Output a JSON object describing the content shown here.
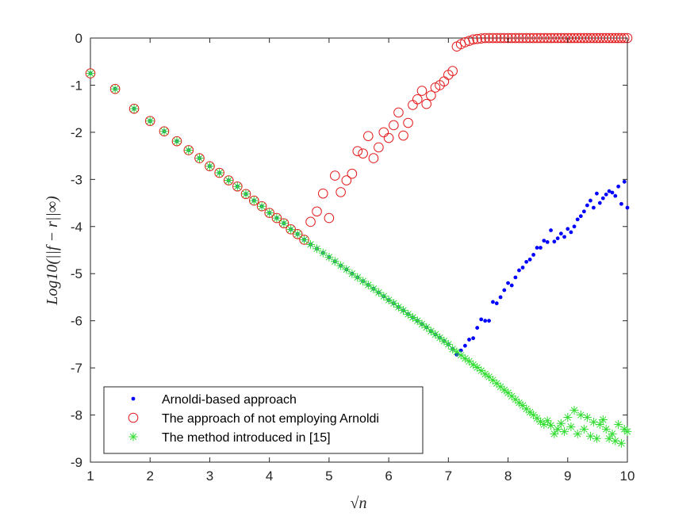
{
  "chart_data": {
    "type": "scatter",
    "title": "",
    "xlabel": "√n",
    "ylabel": "Log10(||f − r||∞)",
    "xlim": [
      1,
      10
    ],
    "ylim": [
      -9,
      0
    ],
    "xticks": [
      1,
      2,
      3,
      4,
      5,
      6,
      7,
      8,
      9,
      10
    ],
    "yticks": [
      0,
      -1,
      -2,
      -3,
      -4,
      -5,
      -6,
      -7,
      -8,
      -9
    ],
    "grid": false,
    "legend_position": "bottom-left",
    "series": [
      {
        "name": "Arnoldi-based approach",
        "marker": "dot",
        "color": "#0000ff",
        "points": [
          [
            1.0,
            -0.75
          ],
          [
            1.414,
            -1.08
          ],
          [
            1.732,
            -1.5
          ],
          [
            2.0,
            -1.76
          ],
          [
            2.236,
            -1.98
          ],
          [
            2.449,
            -2.19
          ],
          [
            2.646,
            -2.38
          ],
          [
            2.828,
            -2.55
          ],
          [
            3.0,
            -2.72
          ],
          [
            3.162,
            -2.86
          ],
          [
            3.317,
            -3.02
          ],
          [
            3.464,
            -3.15
          ],
          [
            3.606,
            -3.31
          ],
          [
            3.742,
            -3.45
          ],
          [
            3.873,
            -3.57
          ],
          [
            4.0,
            -3.71
          ],
          [
            4.123,
            -3.82
          ],
          [
            4.243,
            -3.93
          ],
          [
            4.359,
            -4.06
          ],
          [
            4.472,
            -4.16
          ],
          [
            4.583,
            -4.28
          ],
          [
            4.69,
            -4.38
          ],
          [
            4.796,
            -4.47
          ],
          [
            4.899,
            -4.56
          ],
          [
            5.0,
            -4.65
          ],
          [
            5.099,
            -4.74
          ],
          [
            5.196,
            -4.83
          ],
          [
            5.292,
            -4.91
          ],
          [
            5.385,
            -5.0
          ],
          [
            5.477,
            -5.08
          ],
          [
            5.568,
            -5.16
          ],
          [
            5.657,
            -5.24
          ],
          [
            5.745,
            -5.32
          ],
          [
            5.831,
            -5.4
          ],
          [
            5.916,
            -5.48
          ],
          [
            6.0,
            -5.56
          ],
          [
            6.083,
            -5.63
          ],
          [
            6.164,
            -5.71
          ],
          [
            6.245,
            -5.78
          ],
          [
            6.325,
            -5.86
          ],
          [
            6.403,
            -5.93
          ],
          [
            6.481,
            -6.0
          ],
          [
            6.557,
            -6.07
          ],
          [
            6.633,
            -6.14
          ],
          [
            6.708,
            -6.22
          ],
          [
            6.782,
            -6.29
          ],
          [
            6.856,
            -6.36
          ],
          [
            6.928,
            -6.43
          ],
          [
            7.0,
            -6.5
          ],
          [
            7.071,
            -6.6
          ],
          [
            7.141,
            -6.72
          ],
          [
            7.211,
            -6.63
          ],
          [
            7.28,
            -6.53
          ],
          [
            7.348,
            -6.4
          ],
          [
            7.416,
            -6.37
          ],
          [
            7.483,
            -6.15
          ],
          [
            7.55,
            -5.97
          ],
          [
            7.616,
            -6.0
          ],
          [
            7.681,
            -6.0
          ],
          [
            7.746,
            -5.6
          ],
          [
            7.81,
            -5.63
          ],
          [
            7.874,
            -5.5
          ],
          [
            7.937,
            -5.35
          ],
          [
            8.0,
            -5.2
          ],
          [
            8.062,
            -5.25
          ],
          [
            8.124,
            -5.08
          ],
          [
            8.185,
            -4.93
          ],
          [
            8.246,
            -4.87
          ],
          [
            8.307,
            -4.75
          ],
          [
            8.367,
            -4.7
          ],
          [
            8.426,
            -4.6
          ],
          [
            8.485,
            -4.45
          ],
          [
            8.544,
            -4.45
          ],
          [
            8.602,
            -4.3
          ],
          [
            8.66,
            -4.33
          ],
          [
            8.718,
            -4.08
          ],
          [
            8.775,
            -4.32
          ],
          [
            8.832,
            -4.25
          ],
          [
            8.888,
            -4.15
          ],
          [
            8.944,
            -4.22
          ],
          [
            9.0,
            -4.05
          ],
          [
            9.055,
            -4.12
          ],
          [
            9.11,
            -4.0
          ],
          [
            9.165,
            -3.85
          ],
          [
            9.22,
            -3.78
          ],
          [
            9.274,
            -3.68
          ],
          [
            9.327,
            -3.55
          ],
          [
            9.381,
            -3.45
          ],
          [
            9.434,
            -3.6
          ],
          [
            9.487,
            -3.3
          ],
          [
            9.539,
            -3.5
          ],
          [
            9.592,
            -3.4
          ],
          [
            9.644,
            -3.32
          ],
          [
            9.695,
            -3.25
          ],
          [
            9.747,
            -3.28
          ],
          [
            9.798,
            -3.35
          ],
          [
            9.849,
            -3.15
          ],
          [
            9.899,
            -3.52
          ],
          [
            9.95,
            -3.05
          ],
          [
            10.0,
            -3.6
          ]
        ]
      },
      {
        "name": "The approach of not employing Arnoldi",
        "marker": "circle",
        "color": "#e31a1c",
        "points": [
          [
            1.0,
            -0.75
          ],
          [
            1.414,
            -1.08
          ],
          [
            1.732,
            -1.5
          ],
          [
            2.0,
            -1.76
          ],
          [
            2.236,
            -1.98
          ],
          [
            2.449,
            -2.19
          ],
          [
            2.646,
            -2.38
          ],
          [
            2.828,
            -2.55
          ],
          [
            3.0,
            -2.72
          ],
          [
            3.162,
            -2.86
          ],
          [
            3.317,
            -3.02
          ],
          [
            3.464,
            -3.15
          ],
          [
            3.606,
            -3.31
          ],
          [
            3.742,
            -3.45
          ],
          [
            3.873,
            -3.57
          ],
          [
            4.0,
            -3.71
          ],
          [
            4.123,
            -3.82
          ],
          [
            4.243,
            -3.93
          ],
          [
            4.359,
            -4.06
          ],
          [
            4.472,
            -4.16
          ],
          [
            4.583,
            -4.28
          ],
          [
            4.69,
            -3.9
          ],
          [
            4.796,
            -3.68
          ],
          [
            4.899,
            -3.3
          ],
          [
            5.0,
            -3.82
          ],
          [
            5.099,
            -2.92
          ],
          [
            5.196,
            -3.27
          ],
          [
            5.292,
            -3.02
          ],
          [
            5.385,
            -2.88
          ],
          [
            5.477,
            -2.4
          ],
          [
            5.568,
            -2.45
          ],
          [
            5.657,
            -2.08
          ],
          [
            5.745,
            -2.55
          ],
          [
            5.831,
            -2.32
          ],
          [
            5.916,
            -2.0
          ],
          [
            6.0,
            -2.12
          ],
          [
            6.083,
            -1.85
          ],
          [
            6.164,
            -1.58
          ],
          [
            6.245,
            -2.07
          ],
          [
            6.325,
            -1.8
          ],
          [
            6.403,
            -1.42
          ],
          [
            6.481,
            -1.3
          ],
          [
            6.557,
            -1.12
          ],
          [
            6.633,
            -1.4
          ],
          [
            6.708,
            -1.22
          ],
          [
            6.782,
            -1.05
          ],
          [
            6.856,
            -1.0
          ],
          [
            6.928,
            -0.92
          ],
          [
            7.0,
            -0.78
          ],
          [
            7.071,
            -0.7
          ],
          [
            7.141,
            -0.18
          ],
          [
            7.211,
            -0.13
          ],
          [
            7.28,
            -0.09
          ],
          [
            7.348,
            -0.06
          ],
          [
            7.416,
            -0.03
          ],
          [
            7.483,
            -0.02
          ],
          [
            7.55,
            -0.01
          ],
          [
            7.616,
            0
          ],
          [
            7.681,
            0
          ],
          [
            7.746,
            0
          ],
          [
            7.81,
            0
          ],
          [
            7.874,
            0
          ],
          [
            7.937,
            0
          ],
          [
            8.0,
            0
          ],
          [
            8.062,
            0
          ],
          [
            8.124,
            0
          ],
          [
            8.185,
            0
          ],
          [
            8.246,
            0
          ],
          [
            8.307,
            0
          ],
          [
            8.367,
            0
          ],
          [
            8.426,
            0
          ],
          [
            8.485,
            0
          ],
          [
            8.544,
            0
          ],
          [
            8.602,
            0
          ],
          [
            8.66,
            0
          ],
          [
            8.718,
            0
          ],
          [
            8.775,
            0
          ],
          [
            8.832,
            0
          ],
          [
            8.888,
            0
          ],
          [
            8.944,
            0
          ],
          [
            9.0,
            0
          ],
          [
            9.055,
            0
          ],
          [
            9.11,
            0
          ],
          [
            9.165,
            0
          ],
          [
            9.22,
            0
          ],
          [
            9.274,
            0
          ],
          [
            9.327,
            0
          ],
          [
            9.381,
            0
          ],
          [
            9.434,
            0
          ],
          [
            9.487,
            0
          ],
          [
            9.539,
            0
          ],
          [
            9.592,
            0
          ],
          [
            9.644,
            0
          ],
          [
            9.695,
            0
          ],
          [
            9.747,
            0
          ],
          [
            9.798,
            0
          ],
          [
            9.849,
            0
          ],
          [
            9.899,
            0
          ],
          [
            9.95,
            0
          ],
          [
            10.0,
            0
          ]
        ]
      },
      {
        "name": "The method introduced in [15]",
        "marker": "asterisk",
        "color": "#33dd33",
        "points": [
          [
            1.0,
            -0.75
          ],
          [
            1.414,
            -1.08
          ],
          [
            1.732,
            -1.5
          ],
          [
            2.0,
            -1.76
          ],
          [
            2.236,
            -1.98
          ],
          [
            2.449,
            -2.19
          ],
          [
            2.646,
            -2.38
          ],
          [
            2.828,
            -2.55
          ],
          [
            3.0,
            -2.72
          ],
          [
            3.162,
            -2.86
          ],
          [
            3.317,
            -3.02
          ],
          [
            3.464,
            -3.15
          ],
          [
            3.606,
            -3.31
          ],
          [
            3.742,
            -3.45
          ],
          [
            3.873,
            -3.57
          ],
          [
            4.0,
            -3.71
          ],
          [
            4.123,
            -3.82
          ],
          [
            4.243,
            -3.93
          ],
          [
            4.359,
            -4.06
          ],
          [
            4.472,
            -4.16
          ],
          [
            4.583,
            -4.28
          ],
          [
            4.69,
            -4.38
          ],
          [
            4.796,
            -4.47
          ],
          [
            4.899,
            -4.56
          ],
          [
            5.0,
            -4.65
          ],
          [
            5.099,
            -4.74
          ],
          [
            5.196,
            -4.83
          ],
          [
            5.292,
            -4.91
          ],
          [
            5.385,
            -5.0
          ],
          [
            5.477,
            -5.08
          ],
          [
            5.568,
            -5.16
          ],
          [
            5.657,
            -5.24
          ],
          [
            5.745,
            -5.32
          ],
          [
            5.831,
            -5.4
          ],
          [
            5.916,
            -5.48
          ],
          [
            6.0,
            -5.56
          ],
          [
            6.083,
            -5.63
          ],
          [
            6.164,
            -5.71
          ],
          [
            6.245,
            -5.78
          ],
          [
            6.325,
            -5.86
          ],
          [
            6.403,
            -5.93
          ],
          [
            6.481,
            -6.0
          ],
          [
            6.557,
            -6.07
          ],
          [
            6.633,
            -6.14
          ],
          [
            6.708,
            -6.22
          ],
          [
            6.782,
            -6.29
          ],
          [
            6.856,
            -6.36
          ],
          [
            6.928,
            -6.43
          ],
          [
            7.0,
            -6.5
          ],
          [
            7.071,
            -6.6
          ],
          [
            7.141,
            -6.66
          ],
          [
            7.211,
            -6.73
          ],
          [
            7.28,
            -6.8
          ],
          [
            7.348,
            -6.86
          ],
          [
            7.416,
            -6.93
          ],
          [
            7.483,
            -6.99
          ],
          [
            7.55,
            -7.06
          ],
          [
            7.616,
            -7.13
          ],
          [
            7.681,
            -7.19
          ],
          [
            7.746,
            -7.26
          ],
          [
            7.81,
            -7.33
          ],
          [
            7.874,
            -7.4
          ],
          [
            7.937,
            -7.47
          ],
          [
            8.0,
            -7.53
          ],
          [
            8.062,
            -7.6
          ],
          [
            8.124,
            -7.67
          ],
          [
            8.185,
            -7.74
          ],
          [
            8.246,
            -7.8
          ],
          [
            8.307,
            -7.87
          ],
          [
            8.367,
            -7.94
          ],
          [
            8.426,
            -8.0
          ],
          [
            8.485,
            -8.07
          ],
          [
            8.544,
            -8.14
          ],
          [
            8.602,
            -8.2
          ],
          [
            8.66,
            -8.12
          ],
          [
            8.718,
            -8.22
          ],
          [
            8.775,
            -8.4
          ],
          [
            8.832,
            -8.3
          ],
          [
            8.888,
            -8.18
          ],
          [
            8.944,
            -8.35
          ],
          [
            9.0,
            -8.05
          ],
          [
            9.055,
            -8.25
          ],
          [
            9.11,
            -7.9
          ],
          [
            9.165,
            -8.4
          ],
          [
            9.22,
            -8.0
          ],
          [
            9.274,
            -8.3
          ],
          [
            9.327,
            -8.05
          ],
          [
            9.381,
            -8.45
          ],
          [
            9.434,
            -8.15
          ],
          [
            9.487,
            -8.5
          ],
          [
            9.539,
            -8.2
          ],
          [
            9.592,
            -8.1
          ],
          [
            9.644,
            -8.3
          ],
          [
            9.695,
            -8.5
          ],
          [
            9.747,
            -8.4
          ],
          [
            9.798,
            -8.55
          ],
          [
            9.849,
            -8.2
          ],
          [
            9.899,
            -8.6
          ],
          [
            9.95,
            -8.3
          ],
          [
            10.0,
            -8.35
          ]
        ]
      }
    ]
  },
  "style": {
    "axis_color": "#262626",
    "background": "#ffffff"
  }
}
